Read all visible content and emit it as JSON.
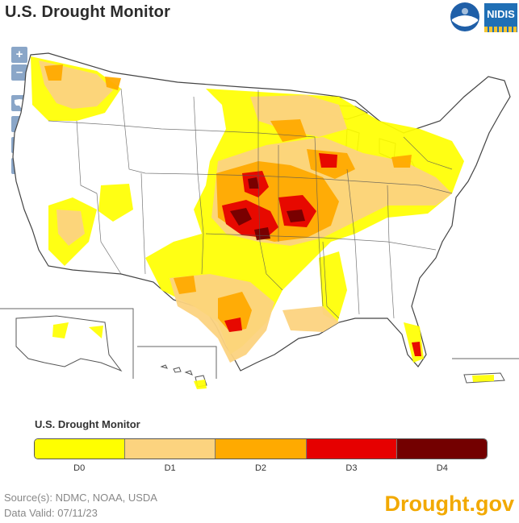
{
  "header": {
    "title": "U.S. Drought Monitor"
  },
  "logos": {
    "noaa": "NOAA",
    "nidis": "NIDIS"
  },
  "controls": {
    "zoom_in": "+",
    "zoom_out": "–",
    "region_icons": [
      "conus-map-icon",
      "west-region-icon",
      "east-region-icon",
      "puerto-rico-icon"
    ]
  },
  "map": {
    "subject": "United States drought conditions",
    "categories_present": [
      "D0",
      "D1",
      "D2",
      "D3",
      "D4"
    ]
  },
  "legend": {
    "title": "U.S. Drought Monitor",
    "items": [
      {
        "label": "D0",
        "color": "#FFFF00"
      },
      {
        "label": "D1",
        "color": "#FCD37F"
      },
      {
        "label": "D2",
        "color": "#FFAA00"
      },
      {
        "label": "D3",
        "color": "#E60000"
      },
      {
        "label": "D4",
        "color": "#730000"
      }
    ]
  },
  "footer": {
    "source": "Source(s): NDMC, NOAA, USDA",
    "valid": "Data Valid: 07/11/23",
    "brand": "Drought.gov"
  }
}
